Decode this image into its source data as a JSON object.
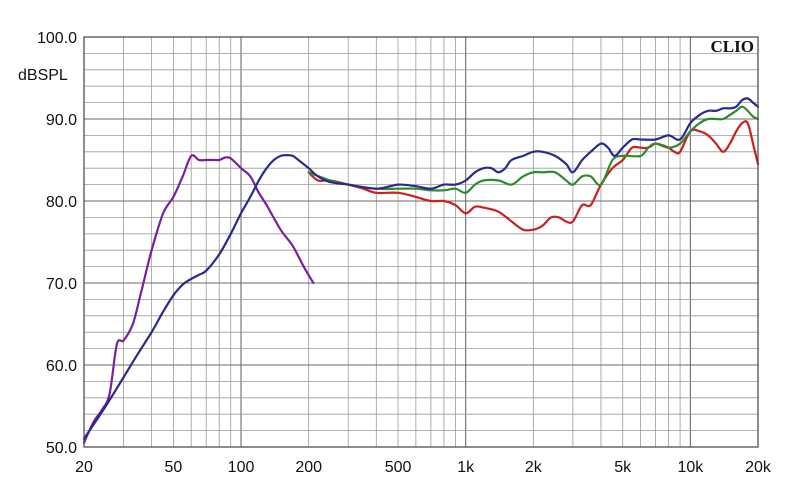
{
  "chart_data": {
    "type": "line",
    "brand": "CLIO",
    "ylabel": "dBSPL",
    "xlabel": "",
    "xscale": "log",
    "xlim": [
      20,
      20000
    ],
    "ylim": [
      50,
      100
    ],
    "grid": true,
    "x_ticks": [
      {
        "value": 20,
        "label": "20"
      },
      {
        "value": 50,
        "label": "50"
      },
      {
        "value": 100,
        "label": "100"
      },
      {
        "value": 200,
        "label": "200"
      },
      {
        "value": 500,
        "label": "500"
      },
      {
        "value": 1000,
        "label": "1k"
      },
      {
        "value": 2000,
        "label": "2k"
      },
      {
        "value": 5000,
        "label": "5k"
      },
      {
        "value": 10000,
        "label": "10k"
      },
      {
        "value": 20000,
        "label": "20k"
      }
    ],
    "y_ticks": [
      {
        "value": 50,
        "label": "50.0"
      },
      {
        "value": 60,
        "label": "60.0"
      },
      {
        "value": 70,
        "label": "70.0"
      },
      {
        "value": 80,
        "label": "80.0"
      },
      {
        "value": 90,
        "label": "90.0"
      },
      {
        "value": 100,
        "label": "100.0"
      }
    ],
    "series": [
      {
        "color": "#7a1f9e",
        "points": [
          [
            20,
            50.5
          ],
          [
            22,
            53
          ],
          [
            24,
            54.5
          ],
          [
            26,
            56.5
          ],
          [
            28,
            62.5
          ],
          [
            30,
            63
          ],
          [
            33,
            65
          ],
          [
            36,
            69
          ],
          [
            40,
            74
          ],
          [
            45,
            78.5
          ],
          [
            50,
            80.5
          ],
          [
            55,
            83
          ],
          [
            60,
            85.5
          ],
          [
            65,
            85
          ],
          [
            70,
            85
          ],
          [
            75,
            85
          ],
          [
            80,
            85
          ],
          [
            85,
            85.3
          ],
          [
            90,
            85.2
          ],
          [
            100,
            84
          ],
          [
            110,
            83
          ],
          [
            120,
            81
          ],
          [
            130,
            79.5
          ],
          [
            150,
            76.5
          ],
          [
            170,
            74.5
          ],
          [
            190,
            72
          ],
          [
            210,
            70
          ]
        ]
      },
      {
        "color": "#cc1f1f",
        "points": [
          [
            200,
            83.5
          ],
          [
            220,
            82.5
          ],
          [
            250,
            82.5
          ],
          [
            300,
            82
          ],
          [
            350,
            81.5
          ],
          [
            400,
            81
          ],
          [
            500,
            81
          ],
          [
            600,
            80.5
          ],
          [
            700,
            80
          ],
          [
            800,
            80
          ],
          [
            900,
            79.5
          ],
          [
            1000,
            78.5
          ],
          [
            1100,
            79.3
          ],
          [
            1200,
            79.2
          ],
          [
            1400,
            78.7
          ],
          [
            1600,
            77.5
          ],
          [
            1800,
            76.5
          ],
          [
            2000,
            76.5
          ],
          [
            2200,
            77
          ],
          [
            2400,
            78
          ],
          [
            2600,
            78
          ],
          [
            2800,
            77.5
          ],
          [
            3000,
            77.5
          ],
          [
            3300,
            79.5
          ],
          [
            3600,
            79.5
          ],
          [
            4000,
            82
          ],
          [
            4500,
            84
          ],
          [
            5000,
            85
          ],
          [
            5500,
            86.5
          ],
          [
            6000,
            86.5
          ],
          [
            6500,
            86.5
          ],
          [
            7000,
            87
          ],
          [
            7500,
            86.8
          ],
          [
            8000,
            86.5
          ],
          [
            8500,
            86
          ],
          [
            9000,
            86
          ],
          [
            10000,
            88.5
          ],
          [
            11000,
            88.5
          ],
          [
            12000,
            88
          ],
          [
            13000,
            87
          ],
          [
            14000,
            86
          ],
          [
            15000,
            87
          ],
          [
            16000,
            88.5
          ],
          [
            17000,
            89.5
          ],
          [
            18000,
            89.5
          ],
          [
            19000,
            87
          ],
          [
            20000,
            84.5
          ]
        ]
      },
      {
        "color": "#2f8a2f",
        "points": [
          [
            200,
            83.5
          ],
          [
            250,
            82.5
          ],
          [
            300,
            82
          ],
          [
            400,
            81.5
          ],
          [
            500,
            81.5
          ],
          [
            600,
            81.5
          ],
          [
            700,
            81.3
          ],
          [
            800,
            81.3
          ],
          [
            900,
            81.5
          ],
          [
            1000,
            81
          ],
          [
            1100,
            82
          ],
          [
            1200,
            82.5
          ],
          [
            1400,
            82.5
          ],
          [
            1600,
            82
          ],
          [
            1800,
            83
          ],
          [
            2000,
            83.5
          ],
          [
            2200,
            83.5
          ],
          [
            2500,
            83.5
          ],
          [
            2800,
            82.5
          ],
          [
            3000,
            82
          ],
          [
            3300,
            83
          ],
          [
            3600,
            83
          ],
          [
            4000,
            82
          ],
          [
            4500,
            85
          ],
          [
            5000,
            85.5
          ],
          [
            6000,
            85.5
          ],
          [
            6500,
            86.5
          ],
          [
            7000,
            87
          ],
          [
            8000,
            86.5
          ],
          [
            9000,
            87
          ],
          [
            10000,
            88.5
          ],
          [
            11000,
            89.5
          ],
          [
            12000,
            90
          ],
          [
            13000,
            90
          ],
          [
            14000,
            90
          ],
          [
            15000,
            90.5
          ],
          [
            16000,
            91
          ],
          [
            17000,
            91.5
          ],
          [
            18000,
            91
          ],
          [
            19000,
            90.3
          ],
          [
            20000,
            90
          ]
        ]
      },
      {
        "color": "#2a2a8a",
        "points": [
          [
            20,
            51
          ],
          [
            25,
            55
          ],
          [
            30,
            58.5
          ],
          [
            35,
            61.5
          ],
          [
            40,
            64
          ],
          [
            45,
            66.5
          ],
          [
            50,
            68.5
          ],
          [
            55,
            69.8
          ],
          [
            60,
            70.5
          ],
          [
            65,
            71
          ],
          [
            70,
            71.5
          ],
          [
            80,
            73.5
          ],
          [
            90,
            76
          ],
          [
            100,
            78.5
          ],
          [
            110,
            80.5
          ],
          [
            120,
            82.5
          ],
          [
            130,
            84
          ],
          [
            140,
            85
          ],
          [
            150,
            85.5
          ],
          [
            160,
            85.6
          ],
          [
            170,
            85.5
          ],
          [
            180,
            85
          ],
          [
            200,
            84
          ],
          [
            220,
            83
          ],
          [
            250,
            82.3
          ],
          [
            300,
            82
          ],
          [
            400,
            81.5
          ],
          [
            500,
            82
          ],
          [
            600,
            81.8
          ],
          [
            700,
            81.5
          ],
          [
            800,
            82
          ],
          [
            900,
            82
          ],
          [
            1000,
            82.5
          ],
          [
            1100,
            83.5
          ],
          [
            1200,
            84
          ],
          [
            1300,
            84
          ],
          [
            1400,
            83.5
          ],
          [
            1500,
            84
          ],
          [
            1600,
            85
          ],
          [
            1800,
            85.5
          ],
          [
            2000,
            86
          ],
          [
            2200,
            86
          ],
          [
            2500,
            85.5
          ],
          [
            2800,
            84.5
          ],
          [
            3000,
            83.5
          ],
          [
            3300,
            85
          ],
          [
            3600,
            86
          ],
          [
            4000,
            87
          ],
          [
            4300,
            86.5
          ],
          [
            4600,
            85.5
          ],
          [
            5000,
            86.5
          ],
          [
            5500,
            87.5
          ],
          [
            6000,
            87.5
          ],
          [
            7000,
            87.5
          ],
          [
            8000,
            88
          ],
          [
            9000,
            87.5
          ],
          [
            10000,
            89.5
          ],
          [
            11000,
            90.5
          ],
          [
            12000,
            91
          ],
          [
            13000,
            91
          ],
          [
            14000,
            91.3
          ],
          [
            15000,
            91.3
          ],
          [
            16000,
            91.5
          ],
          [
            17000,
            92.3
          ],
          [
            18000,
            92.5
          ],
          [
            19000,
            92
          ],
          [
            20000,
            91.5
          ]
        ]
      }
    ]
  }
}
